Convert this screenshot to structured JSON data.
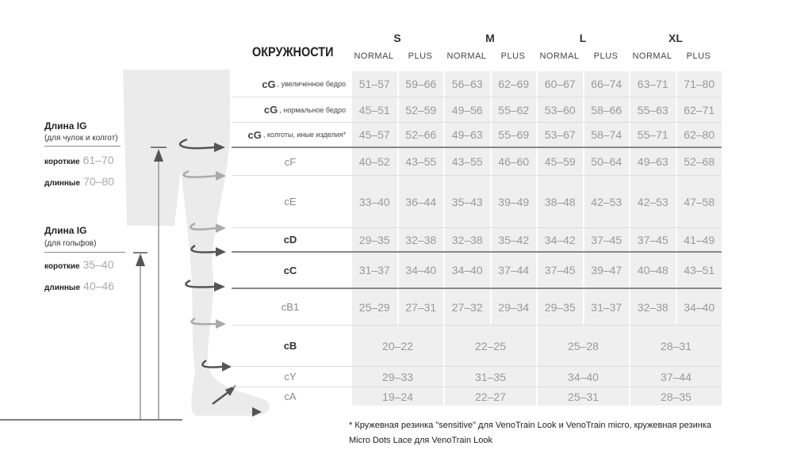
{
  "title": "ОКРУЖНОСТИ",
  "sizes": [
    "S",
    "M",
    "L",
    "XL"
  ],
  "subs": [
    "NORMAL",
    "PLUS"
  ],
  "rows": [
    {
      "label": "cG",
      "note": ", увеличенное бедро",
      "values": [
        "51–57",
        "59–66",
        "56–63",
        "62–69",
        "60–67",
        "66–74",
        "63–71",
        "71–80"
      ]
    },
    {
      "label": "cG",
      "note": ", нормальное бедро",
      "values": [
        "45–51",
        "52–59",
        "49–56",
        "55–62",
        "53–60",
        "58–66",
        "55–63",
        "62–71"
      ]
    },
    {
      "label": "cG",
      "note": ", колготы, иные изделия*",
      "values": [
        "45–57",
        "52–66",
        "49–63",
        "55–69",
        "53–67",
        "58–74",
        "55–71",
        "62–80"
      ]
    },
    {
      "label": "cF",
      "values": [
        "40–52",
        "43–55",
        "43–55",
        "46–60",
        "45–59",
        "50–64",
        "49–63",
        "52–68"
      ]
    },
    {
      "label": "cE",
      "values": [
        "33–40",
        "36–44",
        "35–43",
        "39–49",
        "38–48",
        "42–53",
        "42–53",
        "47–58"
      ]
    },
    {
      "label": "cD",
      "bold": true,
      "values": [
        "29–35",
        "32–38",
        "32–38",
        "35–42",
        "34–42",
        "37–45",
        "37–45",
        "41–49"
      ]
    },
    {
      "label": "cC",
      "bold": true,
      "values": [
        "31–37",
        "34–40",
        "34–40",
        "37–44",
        "37–45",
        "39–47",
        "40–48",
        "43–51"
      ]
    },
    {
      "label": "cB1",
      "values": [
        "25–29",
        "27–31",
        "27–32",
        "29–34",
        "29–35",
        "31–37",
        "32–38",
        "34–40"
      ]
    },
    {
      "label": "cB",
      "bold": true,
      "merged": true,
      "values": [
        "20–22",
        "22–25",
        "25–28",
        "28–31"
      ]
    },
    {
      "label": "cY",
      "merged": true,
      "values": [
        "29–33",
        "31–35",
        "34–40",
        "37–44"
      ]
    },
    {
      "label": "cA",
      "merged": true,
      "values": [
        "19–24",
        "22–27",
        "25–31",
        "28–35"
      ]
    }
  ],
  "length1": {
    "title": "Длина IG",
    "subtitle": "(для чулок и колгот)",
    "short_label": "короткие",
    "short": "61–70",
    "long_label": "длинные",
    "long": "70–80"
  },
  "length2": {
    "title": "Длина IG",
    "subtitle": "(для гольфов)",
    "short_label": "короткие",
    "short": "35–40",
    "long_label": "длинные",
    "long": "40–46"
  },
  "footnote": [
    "* Кружевная резинка \"sensitive\" для VenoTrain Look и VenoTrain micro, кружевная резинка",
    "Micro Dots Lace для VenoTrain Look"
  ]
}
